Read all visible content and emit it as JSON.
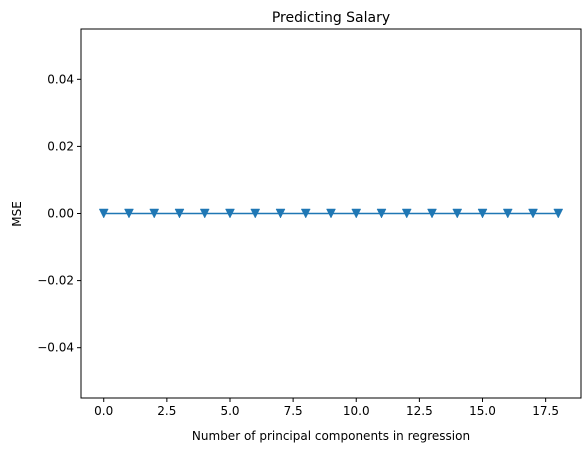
{
  "chart_data": {
    "type": "line",
    "title": "Predicting Salary",
    "xlabel": "Number of principal components in regression",
    "ylabel": "MSE",
    "xlim": [
      -0.9,
      18.9
    ],
    "ylim": [
      -0.055,
      0.055
    ],
    "xticks": [
      0.0,
      2.5,
      5.0,
      7.5,
      10.0,
      12.5,
      15.0,
      17.5
    ],
    "xtick_labels": [
      "0.0",
      "2.5",
      "5.0",
      "7.5",
      "10.0",
      "12.5",
      "15.0",
      "17.5"
    ],
    "yticks": [
      -0.04,
      -0.02,
      0.0,
      0.02,
      0.04
    ],
    "ytick_labels": [
      "−0.04",
      "−0.02",
      "0.00",
      "0.02",
      "0.04"
    ],
    "grid": false,
    "series": [
      {
        "marker": "triangle-down",
        "color": "#1f77b4",
        "x": [
          0,
          1,
          2,
          3,
          4,
          5,
          6,
          7,
          8,
          9,
          10,
          11,
          12,
          13,
          14,
          15,
          16,
          17,
          18
        ],
        "y": [
          0,
          0,
          0,
          0,
          0,
          0,
          0,
          0,
          0,
          0,
          0,
          0,
          0,
          0,
          0,
          0,
          0,
          0,
          0
        ]
      }
    ]
  }
}
